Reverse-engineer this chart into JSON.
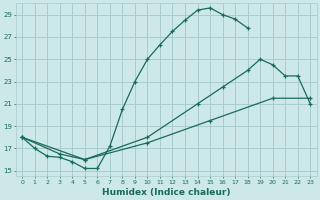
{
  "xlabel": "Humidex (Indice chaleur)",
  "bg_color": "#cce8e8",
  "grid_color": "#aacccc",
  "line_color": "#1a6b5a",
  "ylim": [
    14.5,
    30
  ],
  "xlim": [
    -0.5,
    23.5
  ],
  "yticks": [
    15,
    17,
    19,
    21,
    23,
    25,
    27,
    29
  ],
  "xticks": [
    0,
    1,
    2,
    3,
    4,
    5,
    6,
    7,
    8,
    9,
    10,
    11,
    12,
    13,
    14,
    15,
    16,
    17,
    18,
    19,
    20,
    21,
    22,
    23
  ],
  "lines": [
    {
      "x": [
        0,
        1,
        2,
        3,
        4,
        5,
        6,
        7,
        8,
        9,
        10,
        11,
        12,
        13,
        14,
        15,
        16,
        17,
        18
      ],
      "y": [
        18,
        17,
        16.3,
        16.2,
        15.8,
        15.2,
        15.2,
        17.2,
        20.5,
        23,
        25,
        26.3,
        27.5,
        28.5,
        29.4,
        29.6,
        29.0,
        28.6,
        27.8
      ]
    },
    {
      "x": [
        0,
        3,
        5,
        10,
        14,
        16,
        18,
        19,
        20,
        21,
        22,
        23
      ],
      "y": [
        18,
        16.5,
        16,
        18,
        21,
        22.5,
        24,
        25,
        24.5,
        23.5,
        23.5,
        21
      ]
    },
    {
      "x": [
        0,
        5,
        10,
        15,
        20,
        23
      ],
      "y": [
        18,
        16,
        17.5,
        19.5,
        21.5,
        21.5
      ]
    }
  ]
}
